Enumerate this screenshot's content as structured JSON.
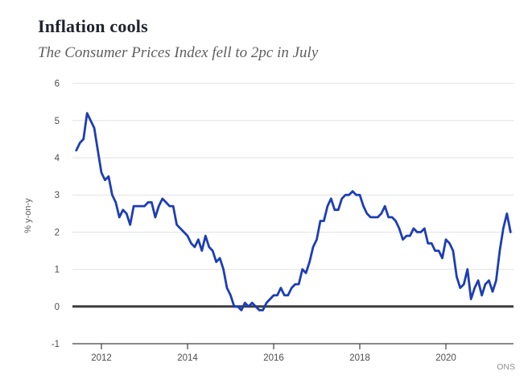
{
  "header": {
    "title": "Inflation cools",
    "subtitle": "The Consumer Prices Index fell to 2pc in July"
  },
  "source": "ONS",
  "colors": {
    "line": "#1d3db5",
    "grid": "#e2e2e2",
    "zero_line": "#3d3d3d",
    "axis": "#404040",
    "tick_label": "#4c4c4c",
    "title": "#20242e",
    "subtitle": "#5f5f5f",
    "source": "#8f8f8f",
    "background": "#ffffff"
  },
  "chart_data": {
    "type": "line",
    "title": "Inflation cools",
    "subtitle": "The Consumer Prices Index fell to 2pc in July",
    "xlabel": "",
    "ylabel": "% y-on-y",
    "source": "ONS",
    "ylim": [
      -1,
      6
    ],
    "yticks": [
      -1,
      0,
      1,
      2,
      3,
      4,
      5,
      6
    ],
    "xticks": [
      2012,
      2014,
      2016,
      2018,
      2020
    ],
    "grid": true,
    "legend": false,
    "zero_line": true,
    "series": [
      {
        "name": "Consumer Prices Index, % change year-on-year",
        "color": "#1d3db5",
        "frequency": "monthly",
        "start": {
          "year": 2011,
          "month": 6
        },
        "end": {
          "year": 2021,
          "month": 7
        },
        "values": [
          4.2,
          4.4,
          4.5,
          5.2,
          5.0,
          4.8,
          4.2,
          3.6,
          3.4,
          3.5,
          3.0,
          2.8,
          2.4,
          2.6,
          2.5,
          2.2,
          2.7,
          2.7,
          2.7,
          2.7,
          2.8,
          2.8,
          2.4,
          2.7,
          2.9,
          2.8,
          2.7,
          2.7,
          2.2,
          2.1,
          2.0,
          1.9,
          1.7,
          1.6,
          1.8,
          1.5,
          1.9,
          1.6,
          1.5,
          1.2,
          1.3,
          1.0,
          0.5,
          0.3,
          0.0,
          0.0,
          -0.1,
          0.1,
          0.0,
          0.1,
          0.0,
          -0.1,
          -0.1,
          0.1,
          0.2,
          0.3,
          0.3,
          0.5,
          0.3,
          0.3,
          0.5,
          0.6,
          0.6,
          1.0,
          0.9,
          1.2,
          1.6,
          1.8,
          2.3,
          2.3,
          2.7,
          2.9,
          2.6,
          2.6,
          2.9,
          3.0,
          3.0,
          3.1,
          3.0,
          3.0,
          2.7,
          2.5,
          2.4,
          2.4,
          2.4,
          2.5,
          2.7,
          2.4,
          2.4,
          2.3,
          2.1,
          1.8,
          1.9,
          1.9,
          2.1,
          2.0,
          2.0,
          2.1,
          1.7,
          1.7,
          1.5,
          1.5,
          1.3,
          1.8,
          1.7,
          1.5,
          0.8,
          0.5,
          0.6,
          1.0,
          0.2,
          0.5,
          0.7,
          0.3,
          0.6,
          0.7,
          0.4,
          0.7,
          1.5,
          2.1,
          2.5,
          2.0
        ]
      }
    ]
  }
}
